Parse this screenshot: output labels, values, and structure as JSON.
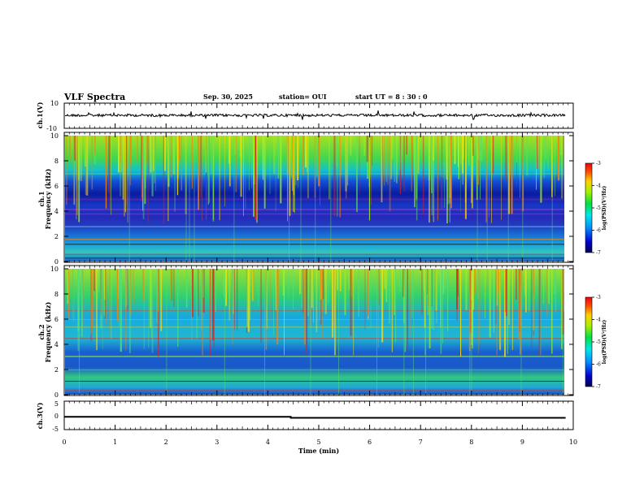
{
  "header": {
    "title": "VLF Spectra",
    "date": "Sep. 30, 2025",
    "station": "station= OUI",
    "start": "start  UT =  8 : 30 : 0"
  },
  "chart_data": [
    {
      "type": "line",
      "name": "ch1-waveform",
      "ylabel": "ch.1(V)",
      "ylim": [
        -10,
        10
      ],
      "yticks": [
        "10",
        "-10"
      ]
    },
    {
      "type": "heatmap",
      "name": "ch1-spectrogram",
      "ylabel": "ch.1\nFrequency (kHz)",
      "ylim": [
        0,
        10
      ],
      "yticks": [
        "0",
        "2",
        "4",
        "6",
        "8",
        "10"
      ],
      "colorbar": {
        "label": "log(PSD)(V²/Hz)",
        "range": [
          -7,
          -3
        ],
        "ticks": [
          "-3",
          "-4",
          "-5",
          "-6",
          "-7"
        ]
      }
    },
    {
      "type": "heatmap",
      "name": "ch2-spectrogram",
      "ylabel": "ch.2\nFrequency (kHz)",
      "ylim": [
        0,
        10
      ],
      "yticks": [
        "0",
        "2",
        "4",
        "6",
        "8",
        "10"
      ],
      "colorbar": {
        "label": "log(PSD)(V²/Hz)",
        "range": [
          -7,
          -3
        ],
        "ticks": [
          "-3",
          "-4",
          "-5",
          "-6",
          "-7"
        ]
      }
    },
    {
      "type": "line",
      "name": "ch3-trace",
      "ylabel": "ch.3(V)",
      "ylim": [
        -5,
        5
      ],
      "yticks": [
        "5",
        "0",
        "-5"
      ],
      "x": [
        0,
        4.45,
        4.45,
        9.85
      ],
      "values": [
        0.35,
        0.35,
        0.0,
        0.0
      ]
    }
  ],
  "xaxis": {
    "label": "Time (min)",
    "range": [
      0,
      10
    ],
    "ticks": [
      "0",
      "1",
      "2",
      "3",
      "4",
      "5",
      "6",
      "7",
      "8",
      "9",
      "10"
    ],
    "data_end": 9.85
  }
}
